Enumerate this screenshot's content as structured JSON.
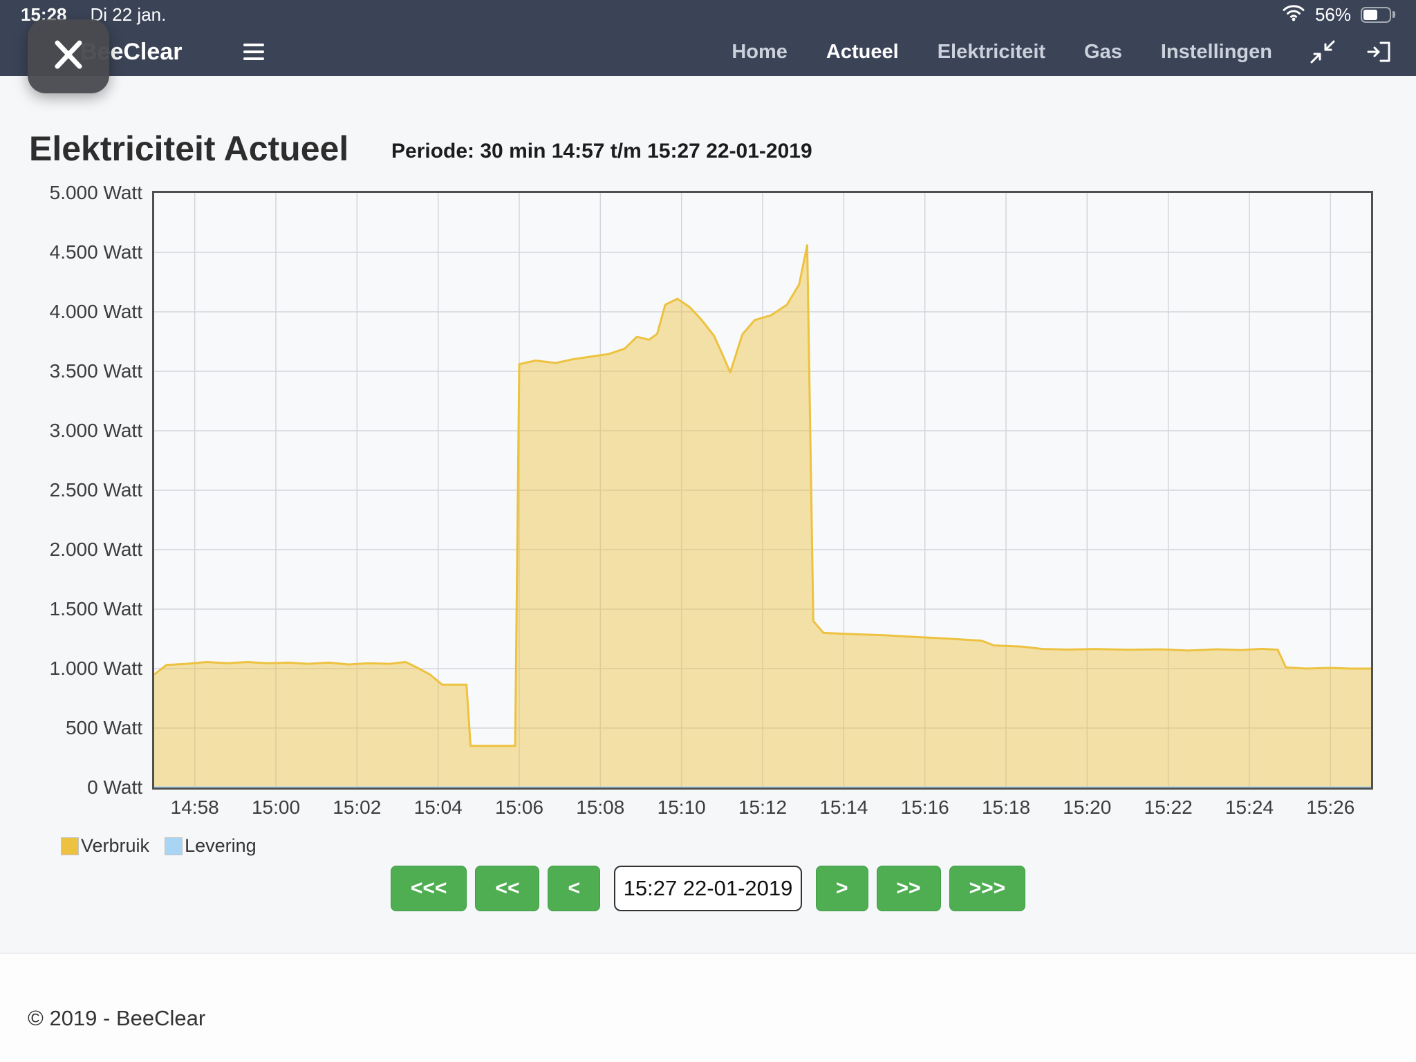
{
  "status_bar": {
    "time": "15:28",
    "date": "Di 22 jan.",
    "battery_percent": "56%"
  },
  "navbar": {
    "brand": "BeeClear",
    "items": [
      {
        "label": "Home",
        "active": false
      },
      {
        "label": "Actueel",
        "active": true
      },
      {
        "label": "Elektriciteit",
        "active": false
      },
      {
        "label": "Gas",
        "active": false
      },
      {
        "label": "Instellingen",
        "active": false
      }
    ]
  },
  "icons": {
    "menu": "hamburger-icon",
    "wifi": "wifi-icon",
    "battery": "battery-icon",
    "compress": "fullscreen-exit-icon",
    "logout": "logout-icon",
    "close": "close-icon"
  },
  "page": {
    "title": "Elektriciteit Actueel",
    "period": "Periode: 30 min 14:57 t/m 15:27 22-01-2019"
  },
  "legend": {
    "items": [
      {
        "label": "Verbruik",
        "color": "#edc240"
      },
      {
        "label": "Levering",
        "color": "#a9d5f5"
      }
    ]
  },
  "controls": {
    "back3": "<<<",
    "back2": "<<",
    "back1": "<",
    "date_value": "15:27 22-01-2019",
    "fwd1": ">",
    "fwd2": ">>",
    "fwd3": ">>>"
  },
  "footer": {
    "copyright": "© 2019 - BeeClear"
  },
  "chart_data": {
    "type": "area",
    "title": "Elektriciteit Actueel",
    "x_start": "14:57",
    "x_end": "15:27",
    "x_domain_min": [
      0,
      30
    ],
    "ylim": [
      0,
      5000
    ],
    "grid": true,
    "grid_color": "#d2d5db",
    "legend_position": "below-left",
    "x_ticks": [
      {
        "offset": 1,
        "label": "14:58"
      },
      {
        "offset": 3,
        "label": "15:00"
      },
      {
        "offset": 5,
        "label": "15:02"
      },
      {
        "offset": 7,
        "label": "15:04"
      },
      {
        "offset": 9,
        "label": "15:06"
      },
      {
        "offset": 11,
        "label": "15:08"
      },
      {
        "offset": 13,
        "label": "15:10"
      },
      {
        "offset": 15,
        "label": "15:12"
      },
      {
        "offset": 17,
        "label": "15:14"
      },
      {
        "offset": 19,
        "label": "15:16"
      },
      {
        "offset": 21,
        "label": "15:18"
      },
      {
        "offset": 23,
        "label": "15:20"
      },
      {
        "offset": 25,
        "label": "15:22"
      },
      {
        "offset": 27,
        "label": "15:24"
      },
      {
        "offset": 29,
        "label": "15:26"
      }
    ],
    "y_ticks": [
      {
        "value": 0,
        "label": "0 Watt"
      },
      {
        "value": 500,
        "label": "500 Watt"
      },
      {
        "value": 1000,
        "label": "1.000 Watt"
      },
      {
        "value": 1500,
        "label": "1.500 Watt"
      },
      {
        "value": 2000,
        "label": "2.000 Watt"
      },
      {
        "value": 2500,
        "label": "2.500 Watt"
      },
      {
        "value": 3000,
        "label": "3.000 Watt"
      },
      {
        "value": 3500,
        "label": "3.500 Watt"
      },
      {
        "value": 4000,
        "label": "4.000 Watt"
      },
      {
        "value": 4500,
        "label": "4.500 Watt"
      },
      {
        "value": 5000,
        "label": "5.000 Watt"
      }
    ],
    "series": [
      {
        "name": "Verbruik",
        "color": "#edc240",
        "fill": "rgba(237,194,64,0.45)",
        "points": [
          [
            0,
            950
          ],
          [
            0.3,
            1030
          ],
          [
            0.8,
            1040
          ],
          [
            1.3,
            1055
          ],
          [
            1.8,
            1045
          ],
          [
            2.3,
            1055
          ],
          [
            2.8,
            1045
          ],
          [
            3.3,
            1050
          ],
          [
            3.8,
            1040
          ],
          [
            4.3,
            1050
          ],
          [
            4.8,
            1035
          ],
          [
            5.3,
            1045
          ],
          [
            5.8,
            1040
          ],
          [
            6.2,
            1055
          ],
          [
            6.5,
            1005
          ],
          [
            6.8,
            950
          ],
          [
            7.1,
            865
          ],
          [
            7.7,
            865
          ],
          [
            7.8,
            350
          ],
          [
            8.9,
            350
          ],
          [
            9.0,
            3560
          ],
          [
            9.4,
            3590
          ],
          [
            9.9,
            3570
          ],
          [
            10.3,
            3600
          ],
          [
            10.8,
            3625
          ],
          [
            11.2,
            3645
          ],
          [
            11.6,
            3690
          ],
          [
            11.9,
            3790
          ],
          [
            12.2,
            3765
          ],
          [
            12.4,
            3815
          ],
          [
            12.6,
            4060
          ],
          [
            12.9,
            4110
          ],
          [
            13.2,
            4040
          ],
          [
            13.5,
            3930
          ],
          [
            13.8,
            3800
          ],
          [
            14.0,
            3650
          ],
          [
            14.2,
            3490
          ],
          [
            14.5,
            3810
          ],
          [
            14.8,
            3930
          ],
          [
            15.2,
            3970
          ],
          [
            15.6,
            4060
          ],
          [
            15.9,
            4230
          ],
          [
            16.1,
            4560
          ],
          [
            16.25,
            1400
          ],
          [
            16.5,
            1300
          ],
          [
            17.2,
            1290
          ],
          [
            18.0,
            1280
          ],
          [
            18.8,
            1265
          ],
          [
            19.4,
            1255
          ],
          [
            19.9,
            1245
          ],
          [
            20.4,
            1235
          ],
          [
            20.7,
            1195
          ],
          [
            21.4,
            1185
          ],
          [
            21.9,
            1165
          ],
          [
            22.5,
            1160
          ],
          [
            23.2,
            1165
          ],
          [
            24.0,
            1158
          ],
          [
            24.8,
            1162
          ],
          [
            25.5,
            1152
          ],
          [
            26.2,
            1162
          ],
          [
            26.8,
            1156
          ],
          [
            27.3,
            1166
          ],
          [
            27.7,
            1158
          ],
          [
            27.9,
            1010
          ],
          [
            28.4,
            1000
          ],
          [
            29.0,
            1006
          ],
          [
            29.5,
            1000
          ],
          [
            30,
            1000
          ]
        ]
      },
      {
        "name": "Levering",
        "color": "#a9d5f5",
        "fill": "rgba(169,213,245,0.4)",
        "points": [
          [
            0,
            0
          ],
          [
            30,
            0
          ]
        ]
      }
    ]
  }
}
